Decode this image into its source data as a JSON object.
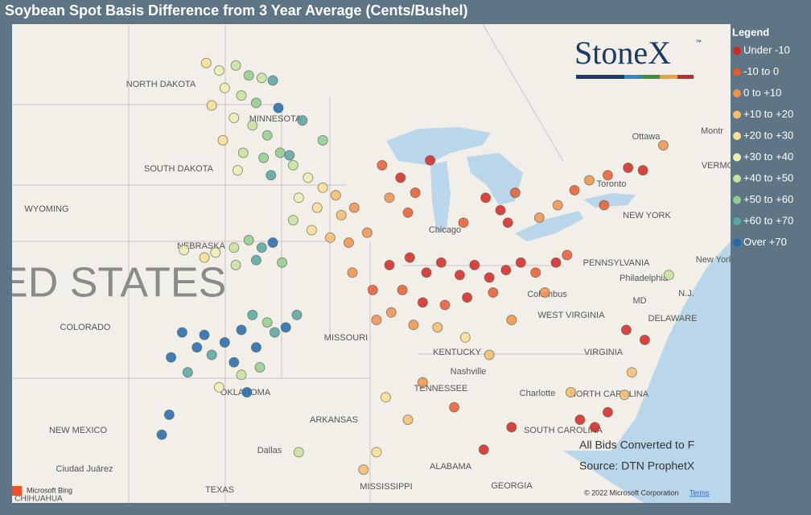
{
  "title": "Soybean Spot Basis Difference from 3 Year Average (Cents/Bushel)",
  "legend": {
    "title": "Legend",
    "entries": [
      {
        "name": "Under -10",
        "color": "#d7261e"
      },
      {
        "name": "-10 to 0",
        "color": "#ec5a2c"
      },
      {
        "name": "0 to +10",
        "color": "#f2924a"
      },
      {
        "name": "+10 to +20",
        "color": "#f7bd6a"
      },
      {
        "name": "+20 to +30",
        "color": "#f9df8e"
      },
      {
        "name": "+30 to +40",
        "color": "#eef0b0"
      },
      {
        "name": "+40 to +50",
        "color": "#c8e39c"
      },
      {
        "name": "+50 to +60",
        "color": "#92cd8e"
      },
      {
        "name": "+60 to +70",
        "color": "#56a6a2"
      },
      {
        "name": "Over +70",
        "color": "#1f6aae"
      }
    ]
  },
  "logo": {
    "text": "StoneX",
    "mark": "™"
  },
  "notes": [
    "All Bids Converted to F",
    "Source: DTN ProphetX"
  ],
  "attribution": {
    "brand": "Microsoft Bing",
    "copyright": "© 2022 Microsoft Corporation",
    "terms": "Terms"
  },
  "map_labels": [
    "NORTH DAKOTA",
    "MINNESOTA",
    "SOUTH DAKOTA",
    "WYOMING",
    "NEBRASKA",
    "COLORADO",
    "UNITED STATES",
    "MISSOURI",
    "KENTUCKY",
    "TENNESSEE",
    "ARKANSAS",
    "OKLAHOMA",
    "NEW MEXICO",
    "TEXAS",
    "MISSISSIPPI",
    "ALABAMA",
    "GEORGIA",
    "VIRGINIA",
    "WEST VIRGINIA",
    "PENNSYLVANIA",
    "NEW YORK",
    "NORTH CAROLINA",
    "SOUTH CAROLINA",
    "MD",
    "DELAWARE",
    "N.J.",
    "VERMO",
    "Ottawa",
    "Montr",
    "Toronto",
    "Chicago",
    "Columbus",
    "Philadelphia",
    "New York",
    "Nashville",
    "Charlotte",
    "Dallas",
    "Ciudad Juárez",
    "CHIHUAHUA"
  ],
  "points": [
    [
      -100.5,
      48.6,
      4
    ],
    [
      -99.8,
      48.3,
      5
    ],
    [
      -98.9,
      48.5,
      6
    ],
    [
      -98.2,
      48.1,
      7
    ],
    [
      -97.5,
      48.0,
      6
    ],
    [
      -99.5,
      47.6,
      5
    ],
    [
      -98.6,
      47.3,
      6
    ],
    [
      -97.8,
      47.0,
      7
    ],
    [
      -100.2,
      46.9,
      4
    ],
    [
      -99.0,
      46.4,
      5
    ],
    [
      -98.0,
      46.1,
      6
    ],
    [
      -97.2,
      45.7,
      7
    ],
    [
      -99.6,
      45.5,
      4
    ],
    [
      -98.5,
      45.0,
      6
    ],
    [
      -97.4,
      44.8,
      7
    ],
    [
      -98.8,
      44.3,
      5
    ],
    [
      -97.0,
      44.1,
      8
    ],
    [
      -96.6,
      46.8,
      9
    ],
    [
      -96.9,
      47.9,
      8
    ],
    [
      -96.5,
      45.0,
      7
    ],
    [
      -95.8,
      44.5,
      6
    ],
    [
      -95.0,
      44.0,
      5
    ],
    [
      -94.2,
      43.6,
      4
    ],
    [
      -93.5,
      43.3,
      3
    ],
    [
      -95.5,
      43.2,
      5
    ],
    [
      -94.5,
      42.8,
      4
    ],
    [
      -93.2,
      42.5,
      3
    ],
    [
      -92.5,
      42.8,
      2
    ],
    [
      -95.8,
      42.3,
      6
    ],
    [
      -94.8,
      41.9,
      4
    ],
    [
      -93.8,
      41.6,
      3
    ],
    [
      -92.8,
      41.4,
      2
    ],
    [
      -91.8,
      41.8,
      2
    ],
    [
      -96.0,
      44.9,
      8
    ],
    [
      -95.3,
      46.3,
      8
    ],
    [
      -94.2,
      45.5,
      7
    ],
    [
      -100.0,
      41.0,
      5
    ],
    [
      -99.0,
      41.2,
      6
    ],
    [
      -98.2,
      41.5,
      7
    ],
    [
      -97.5,
      41.2,
      8
    ],
    [
      -96.9,
      41.4,
      9
    ],
    [
      -97.8,
      40.7,
      8
    ],
    [
      -98.9,
      40.5,
      6
    ],
    [
      -100.6,
      40.8,
      4
    ],
    [
      -101.7,
      41.1,
      5
    ],
    [
      -96.4,
      40.6,
      7
    ],
    [
      -101.8,
      37.8,
      9
    ],
    [
      -100.6,
      37.7,
      9
    ],
    [
      -99.5,
      37.4,
      9
    ],
    [
      -98.6,
      37.9,
      9
    ],
    [
      -97.8,
      37.2,
      9
    ],
    [
      -99.0,
      36.6,
      9
    ],
    [
      -100.2,
      36.9,
      8
    ],
    [
      -101.0,
      37.2,
      9
    ],
    [
      -98.0,
      38.5,
      8
    ],
    [
      -97.2,
      38.2,
      7
    ],
    [
      -96.2,
      38.0,
      9
    ],
    [
      -95.6,
      38.5,
      8
    ],
    [
      -97.6,
      36.4,
      7
    ],
    [
      -98.6,
      36.1,
      6
    ],
    [
      -99.8,
      35.6,
      5
    ],
    [
      -101.5,
      36.2,
      8
    ],
    [
      -102.4,
      36.8,
      9
    ],
    [
      -98.3,
      35.4,
      9
    ],
    [
      -102.5,
      34.5,
      9
    ],
    [
      -96.8,
      37.8,
      8
    ],
    [
      -92.6,
      40.2,
      2
    ],
    [
      -91.5,
      39.5,
      1
    ],
    [
      -90.6,
      40.5,
      0
    ],
    [
      -89.5,
      40.8,
      0
    ],
    [
      -88.6,
      40.2,
      0
    ],
    [
      -87.8,
      40.6,
      0
    ],
    [
      -86.8,
      40.1,
      0
    ],
    [
      -86.0,
      40.5,
      0
    ],
    [
      -85.2,
      40.0,
      0
    ],
    [
      -84.3,
      40.3,
      0
    ],
    [
      -83.5,
      40.6,
      0
    ],
    [
      -82.7,
      40.2,
      1
    ],
    [
      -89.9,
      39.5,
      1
    ],
    [
      -88.8,
      39.0,
      0
    ],
    [
      -87.6,
      38.9,
      1
    ],
    [
      -86.4,
      39.2,
      0
    ],
    [
      -85.0,
      39.4,
      1
    ],
    [
      -90.5,
      38.6,
      2
    ],
    [
      -89.3,
      38.1,
      2
    ],
    [
      -88.0,
      38.0,
      3
    ],
    [
      -91.3,
      38.3,
      2
    ],
    [
      -86.5,
      37.6,
      4
    ],
    [
      -85.2,
      36.9,
      3
    ],
    [
      -84.0,
      38.3,
      2
    ],
    [
      -82.2,
      39.4,
      2
    ],
    [
      -81.6,
      40.6,
      0
    ],
    [
      -81.0,
      40.9,
      1
    ],
    [
      -91.0,
      44.5,
      1
    ],
    [
      -90.0,
      44.0,
      0
    ],
    [
      -89.2,
      43.4,
      1
    ],
    [
      -88.4,
      44.7,
      0
    ],
    [
      -90.6,
      43.2,
      2
    ],
    [
      -89.6,
      42.6,
      1
    ],
    [
      -85.4,
      43.2,
      0
    ],
    [
      -84.6,
      42.7,
      0
    ],
    [
      -83.8,
      43.4,
      1
    ],
    [
      -84.2,
      42.2,
      0
    ],
    [
      -86.6,
      42.2,
      1
    ],
    [
      -82.5,
      42.4,
      2
    ],
    [
      -81.5,
      42.9,
      2
    ],
    [
      -80.6,
      43.5,
      1
    ],
    [
      -79.8,
      43.9,
      2
    ],
    [
      -78.8,
      44.1,
      1
    ],
    [
      -77.7,
      44.4,
      0
    ],
    [
      -76.9,
      44.3,
      0
    ],
    [
      -79.0,
      42.9,
      1
    ],
    [
      -75.8,
      45.3,
      2
    ],
    [
      -75.5,
      40.1,
      6
    ],
    [
      -77.8,
      37.9,
      0
    ],
    [
      -76.8,
      37.5,
      0
    ],
    [
      -77.5,
      36.2,
      3
    ],
    [
      -77.9,
      35.3,
      3
    ],
    [
      -78.8,
      34.6,
      0
    ],
    [
      -79.5,
      34.0,
      0
    ],
    [
      -80.3,
      34.3,
      0
    ],
    [
      -80.8,
      35.4,
      3
    ],
    [
      -84.0,
      34.0,
      0
    ],
    [
      -85.5,
      33.1,
      0
    ],
    [
      -87.1,
      34.8,
      1
    ],
    [
      -88.8,
      35.8,
      2
    ],
    [
      -89.6,
      34.3,
      3
    ],
    [
      -90.8,
      35.2,
      4
    ],
    [
      -92.0,
      32.3,
      3
    ],
    [
      -91.3,
      33.0,
      4
    ],
    [
      -102.9,
      33.7,
      9
    ],
    [
      -95.5,
      33.0,
      6
    ]
  ]
}
